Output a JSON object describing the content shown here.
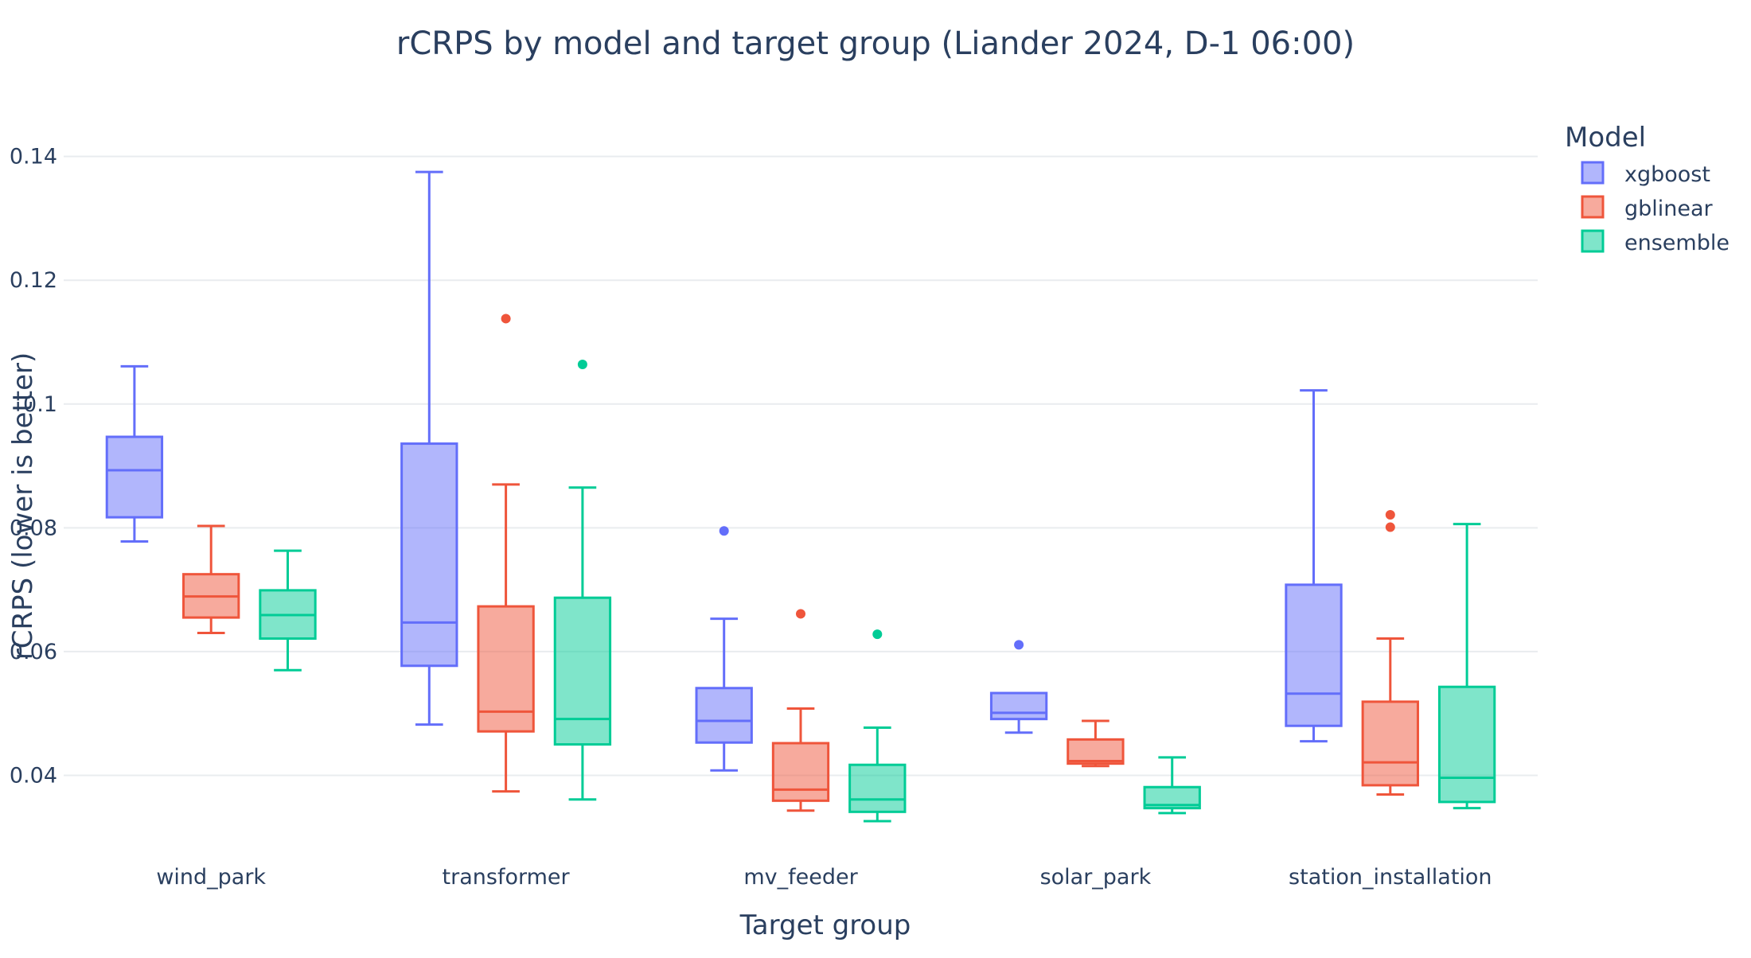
{
  "chart_data": {
    "type": "box",
    "title": "rCRPS by model and target group (Liander 2024, D-1 06:00)",
    "xlabel": "Target group",
    "ylabel": "rCRPS (lower is better)",
    "ylim": [
      0.029,
      0.146
    ],
    "yticks": [
      0.04,
      0.06,
      0.08,
      0.1,
      0.12,
      0.14
    ],
    "ytick_labels": [
      "0.04",
      "0.06",
      "0.08",
      "0.1",
      "0.12",
      "0.14"
    ],
    "grid": true,
    "categories": [
      "wind_park",
      "transformer",
      "mv_feeder",
      "solar_park",
      "station_installation"
    ],
    "legend": {
      "title": "Model",
      "position": "top-right"
    },
    "series": [
      {
        "name": "xgboost",
        "line_color": "#636efa",
        "fill_color": "#636efa",
        "boxes": [
          {
            "lower_whisker": 0.0778,
            "q1": 0.0817,
            "median": 0.0893,
            "q3": 0.0947,
            "upper_whisker": 0.1061,
            "outliers": []
          },
          {
            "lower_whisker": 0.0482,
            "q1": 0.0577,
            "median": 0.0647,
            "q3": 0.0936,
            "upper_whisker": 0.1375,
            "outliers": []
          },
          {
            "lower_whisker": 0.0408,
            "q1": 0.0453,
            "median": 0.0488,
            "q3": 0.0541,
            "upper_whisker": 0.0653,
            "outliers": [
              0.0795
            ]
          },
          {
            "lower_whisker": 0.0469,
            "q1": 0.0491,
            "median": 0.0501,
            "q3": 0.0533,
            "upper_whisker": 0.0533,
            "outliers": [
              0.0611
            ]
          },
          {
            "lower_whisker": 0.0455,
            "q1": 0.048,
            "median": 0.0532,
            "q3": 0.0708,
            "upper_whisker": 0.1022,
            "outliers": []
          }
        ]
      },
      {
        "name": "gblinear",
        "line_color": "#ef553b",
        "fill_color": "#ef553b",
        "boxes": [
          {
            "lower_whisker": 0.063,
            "q1": 0.0655,
            "median": 0.0689,
            "q3": 0.0725,
            "upper_whisker": 0.0803,
            "outliers": []
          },
          {
            "lower_whisker": 0.0374,
            "q1": 0.0471,
            "median": 0.0503,
            "q3": 0.0673,
            "upper_whisker": 0.087,
            "outliers": [
              0.1138
            ]
          },
          {
            "lower_whisker": 0.0343,
            "q1": 0.0359,
            "median": 0.0377,
            "q3": 0.0452,
            "upper_whisker": 0.0508,
            "outliers": [
              0.0661
            ]
          },
          {
            "lower_whisker": 0.0415,
            "q1": 0.0419,
            "median": 0.0423,
            "q3": 0.0458,
            "upper_whisker": 0.0488,
            "outliers": []
          },
          {
            "lower_whisker": 0.0369,
            "q1": 0.0384,
            "median": 0.0421,
            "q3": 0.0519,
            "upper_whisker": 0.0621,
            "outliers": [
              0.0801,
              0.0821
            ]
          }
        ]
      },
      {
        "name": "ensemble",
        "line_color": "#00cc96",
        "fill_color": "#00cc96",
        "boxes": [
          {
            "lower_whisker": 0.057,
            "q1": 0.0621,
            "median": 0.0659,
            "q3": 0.0699,
            "upper_whisker": 0.0763,
            "outliers": []
          },
          {
            "lower_whisker": 0.0361,
            "q1": 0.045,
            "median": 0.0491,
            "q3": 0.0687,
            "upper_whisker": 0.0865,
            "outliers": [
              0.1064
            ]
          },
          {
            "lower_whisker": 0.0326,
            "q1": 0.0341,
            "median": 0.0361,
            "q3": 0.0417,
            "upper_whisker": 0.0477,
            "outliers": [
              0.0628
            ]
          },
          {
            "lower_whisker": 0.0339,
            "q1": 0.0347,
            "median": 0.0352,
            "q3": 0.0381,
            "upper_whisker": 0.0429,
            "outliers": []
          },
          {
            "lower_whisker": 0.0347,
            "q1": 0.0357,
            "median": 0.0396,
            "q3": 0.0543,
            "upper_whisker": 0.0806,
            "outliers": []
          }
        ]
      }
    ]
  }
}
